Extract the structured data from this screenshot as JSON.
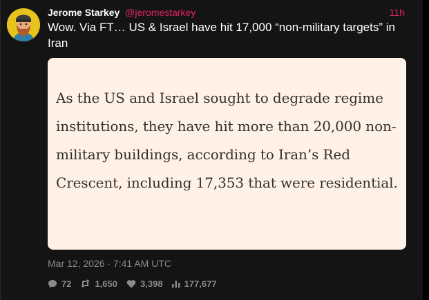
{
  "tweet": {
    "author": {
      "display_name": "Jerome Starkey",
      "handle": "@jeromestarkey",
      "avatar_icon": "bearded-cartoon-avatar"
    },
    "relative_time": "11h",
    "text": "Wow. Via FT… US & Israel have hit 17,000 “non-military targets” in Iran",
    "quote_image": {
      "text": "As the US and Israel sought to degrade regime institutions, they have hit more than 20,000 non-military buildings, according to Iran’s Red Crescent, including 17,353 that were residential."
    },
    "timestamp": "Mar 12, 2026 · 7:41 AM UTC",
    "stats": {
      "replies": "72",
      "retweets": "1,650",
      "likes": "3,398",
      "views": "177,677"
    }
  },
  "colors": {
    "background": "#141414",
    "accent": "#e0245e",
    "card_background": "#fff1e5",
    "card_text": "#33302e",
    "muted": "#8b8b8b"
  }
}
